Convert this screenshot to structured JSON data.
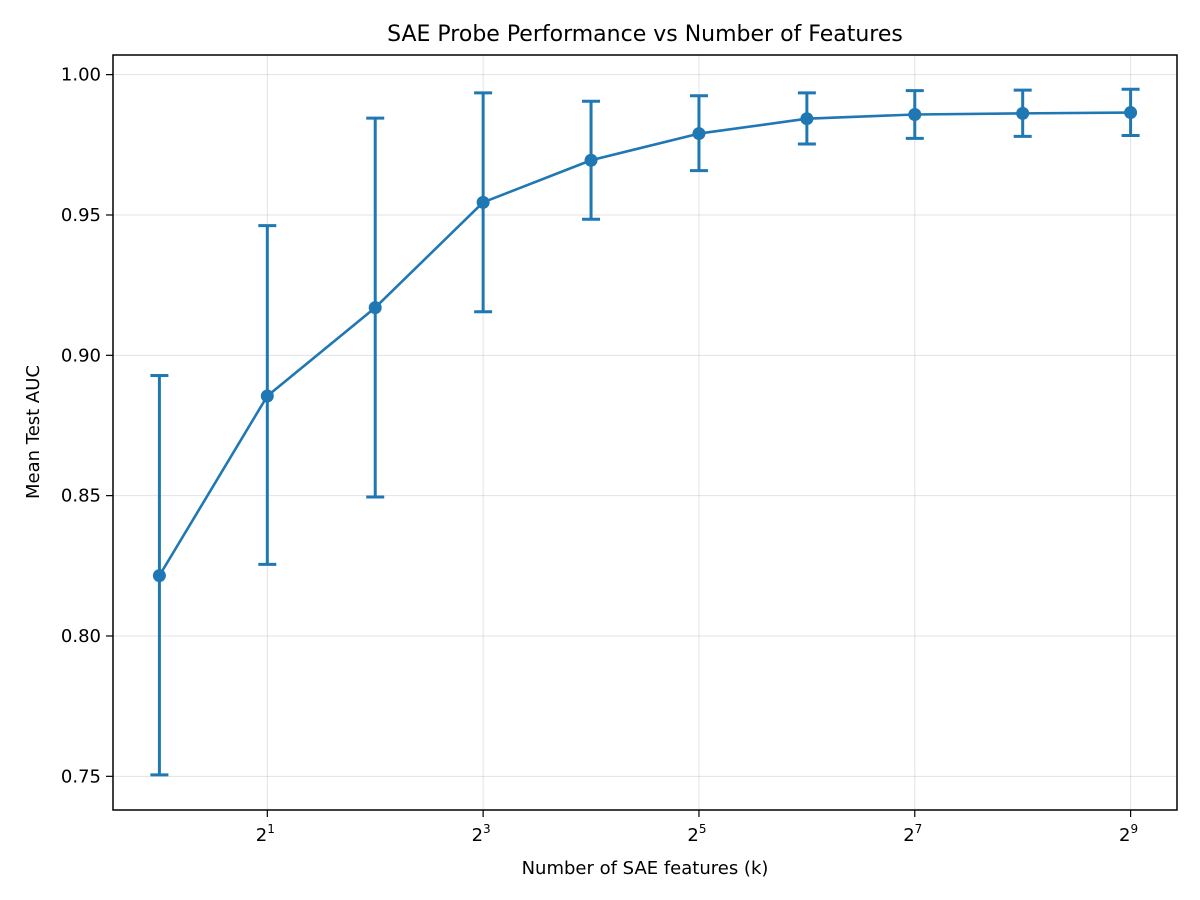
{
  "chart_data": {
    "type": "line",
    "title": "SAE Probe Performance vs Number of Features",
    "xlabel": "Number of SAE features (k)",
    "ylabel": "Mean Test AUC",
    "x_scale": "log2",
    "x": [
      1,
      2,
      4,
      8,
      16,
      32,
      64,
      128,
      256,
      512
    ],
    "xlim_log2": [
      -0.43,
      9.43
    ],
    "ylim": [
      0.738,
      1.007
    ],
    "grid": true,
    "legend": "none",
    "x_ticks": [
      {
        "exp": 1,
        "base": "2",
        "sup": "1"
      },
      {
        "exp": 3,
        "base": "2",
        "sup": "3"
      },
      {
        "exp": 5,
        "base": "2",
        "sup": "5"
      },
      {
        "exp": 7,
        "base": "2",
        "sup": "7"
      },
      {
        "exp": 9,
        "base": "2",
        "sup": "9"
      }
    ],
    "y_ticks": [
      {
        "value": 0.75,
        "label": "0.75"
      },
      {
        "value": 0.8,
        "label": "0.80"
      },
      {
        "value": 0.85,
        "label": "0.85"
      },
      {
        "value": 0.9,
        "label": "0.90"
      },
      {
        "value": 0.95,
        "label": "0.95"
      },
      {
        "value": 1.0,
        "label": "1.00"
      }
    ],
    "series": [
      {
        "name": "Mean Test AUC",
        "color": "#1f77b4",
        "values": [
          0.8215,
          0.8855,
          0.917,
          0.9545,
          0.9695,
          0.979,
          0.9843,
          0.9858,
          0.9862,
          0.9865
        ],
        "err_low": [
          0.7505,
          0.8255,
          0.8495,
          0.9155,
          0.9485,
          0.9658,
          0.9753,
          0.9773,
          0.978,
          0.9783
        ],
        "err_high": [
          0.8928,
          0.9462,
          0.9845,
          0.9935,
          0.9905,
          0.9925,
          0.9935,
          0.9943,
          0.9945,
          0.9948
        ]
      }
    ]
  }
}
